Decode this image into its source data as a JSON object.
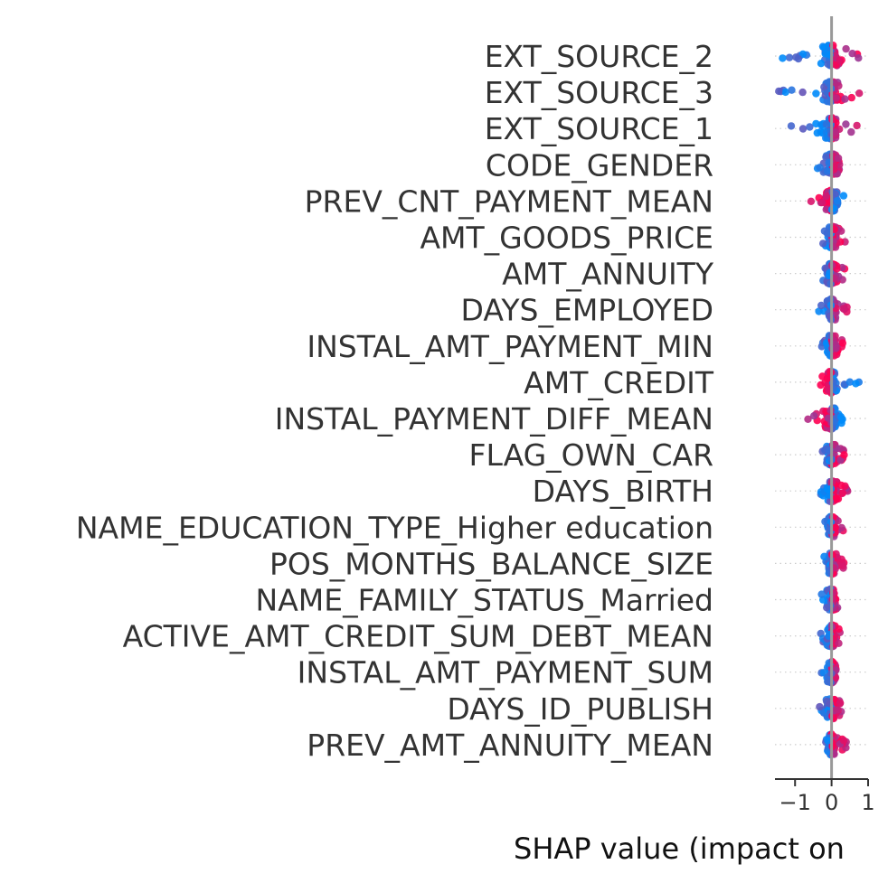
{
  "chart_data": {
    "type": "scatter",
    "subtype": "shap-beeswarm-summary",
    "xlabel": "SHAP value (impact on",
    "xticks": [
      {
        "value": -1,
        "label": "−1"
      },
      {
        "value": 0,
        "label": "0"
      },
      {
        "value": 1,
        "label": "1"
      }
    ],
    "xlim": [
      -1.55,
      1.0
    ],
    "grid": "dotted row guides",
    "colors": {
      "low": "#008bfb",
      "high": "#ff0052",
      "zero_line": "#999999",
      "axis": "#333333",
      "guide": "#cccccc"
    },
    "features": [
      {
        "name": "EXT_SOURCE_2",
        "min": -1.45,
        "max": 0.95,
        "spread": 0.34
      },
      {
        "name": "EXT_SOURCE_3",
        "min": -1.5,
        "max": 0.8,
        "spread": 0.32
      },
      {
        "name": "EXT_SOURCE_1",
        "min": -1.15,
        "max": 0.8,
        "spread": 0.25
      },
      {
        "name": "CODE_GENDER",
        "min": -0.4,
        "max": 0.25,
        "spread": 0.2
      },
      {
        "name": "PREV_CNT_PAYMENT_MEAN",
        "min": -0.65,
        "max": 0.35,
        "spread": 0.22
      },
      {
        "name": "AMT_GOODS_PRICE",
        "min": -0.35,
        "max": 0.4,
        "spread": 0.22
      },
      {
        "name": "AMT_ANNUITY",
        "min": -0.35,
        "max": 0.4,
        "spread": 0.2
      },
      {
        "name": "DAYS_EMPLOYED",
        "min": -0.35,
        "max": 0.55,
        "spread": 0.2
      },
      {
        "name": "INSTAL_AMT_PAYMENT_MIN",
        "min": -0.35,
        "max": 0.35,
        "spread": 0.2
      },
      {
        "name": "AMT_CREDIT",
        "min": -0.6,
        "max": 0.75,
        "spread": 0.2
      },
      {
        "name": "INSTAL_PAYMENT_DIFF_MEAN",
        "min": -0.65,
        "max": 0.35,
        "spread": 0.22
      },
      {
        "name": "FLAG_OWN_CAR",
        "min": -0.25,
        "max": 0.35,
        "spread": 0.18
      },
      {
        "name": "DAYS_BIRTH",
        "min": -0.3,
        "max": 0.45,
        "spread": 0.2
      },
      {
        "name": "NAME_EDUCATION_TYPE_Higher education",
        "min": -0.2,
        "max": 0.35,
        "spread": 0.17
      },
      {
        "name": "POS_MONTHS_BALANCE_SIZE",
        "min": -0.25,
        "max": 0.35,
        "spread": 0.18
      },
      {
        "name": "NAME_FAMILY_STATUS_Married",
        "min": -0.3,
        "max": 0.2,
        "spread": 0.17
      },
      {
        "name": "ACTIVE_AMT_CREDIT_SUM_DEBT_MEAN",
        "min": -0.3,
        "max": 0.25,
        "spread": 0.17
      },
      {
        "name": "INSTAL_AMT_PAYMENT_SUM",
        "min": -0.35,
        "max": 0.3,
        "spread": 0.18
      },
      {
        "name": "DAYS_ID_PUBLISH",
        "min": -0.35,
        "max": 0.3,
        "spread": 0.18
      },
      {
        "name": "PREV_AMT_ANNUITY_MEAN",
        "min": -0.25,
        "max": 0.4,
        "spread": 0.18
      }
    ]
  }
}
